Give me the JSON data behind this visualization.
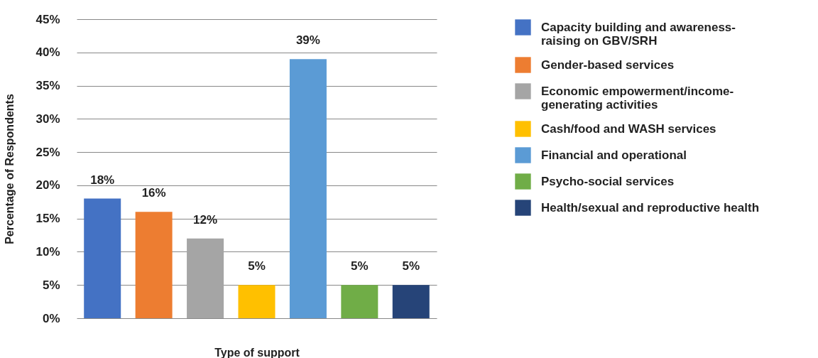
{
  "chart_data": {
    "type": "bar",
    "xlabel": "Type of support",
    "ylabel": "Percentage of Respondents",
    "categories": [
      null,
      null,
      null,
      null,
      null,
      null,
      null
    ],
    "series": [
      {
        "name": "Capacity building and awareness-raising on GBV/SRH",
        "color": "#4472c4",
        "values": [
          18,
          null,
          null,
          null,
          null,
          null,
          null
        ],
        "value_labels": [
          "18%",
          null,
          null,
          null,
          null,
          null,
          null
        ]
      },
      {
        "name": "Gender-based services",
        "color": "#ed7d31",
        "values": [
          null,
          16,
          null,
          null,
          null,
          null,
          null
        ],
        "value_labels": [
          null,
          "16%",
          null,
          null,
          null,
          null,
          null
        ]
      },
      {
        "name": "Economic empowerment/income-generating activities",
        "color": "#a5a5a5",
        "values": [
          null,
          null,
          12,
          null,
          null,
          null,
          null
        ],
        "value_labels": [
          null,
          null,
          "12%",
          null,
          null,
          null,
          null
        ]
      },
      {
        "name": "Cash/food and WASH services",
        "color": "#ffc000",
        "values": [
          null,
          null,
          null,
          5,
          null,
          null,
          null
        ],
        "value_labels": [
          null,
          null,
          null,
          "5%",
          null,
          null,
          null
        ]
      },
      {
        "name": "Financial and operational",
        "color": "#5b9bd5",
        "values": [
          null,
          null,
          null,
          null,
          39,
          null,
          null
        ],
        "value_labels": [
          null,
          null,
          null,
          null,
          "39%",
          null,
          null
        ]
      },
      {
        "name": "Psycho-social services",
        "color": "#70ad47",
        "values": [
          null,
          null,
          null,
          null,
          null,
          5,
          null
        ],
        "value_labels": [
          null,
          null,
          null,
          null,
          null,
          "5%",
          null
        ]
      },
      {
        "name": "Health/sexual and reproductive health",
        "color": "#264478",
        "values": [
          null,
          null,
          null,
          null,
          null,
          null,
          5
        ],
        "value_labels": [
          null,
          null,
          null,
          null,
          null,
          null,
          "5%"
        ]
      }
    ],
    "ylim": [
      0,
      45
    ],
    "yticks": [
      {
        "value": 0,
        "label": "0%"
      },
      {
        "value": 5,
        "label": "5%"
      },
      {
        "value": 10,
        "label": "10%"
      },
      {
        "value": 15,
        "label": "15%"
      },
      {
        "value": 20,
        "label": "20%"
      },
      {
        "value": 25,
        "label": "25%"
      },
      {
        "value": 30,
        "label": "30%"
      },
      {
        "value": 35,
        "label": "35%"
      },
      {
        "value": 40,
        "label": "40%"
      },
      {
        "value": 45,
        "label": "45%"
      }
    ],
    "grid": "y",
    "legend": "right",
    "tick_labels": "y"
  }
}
